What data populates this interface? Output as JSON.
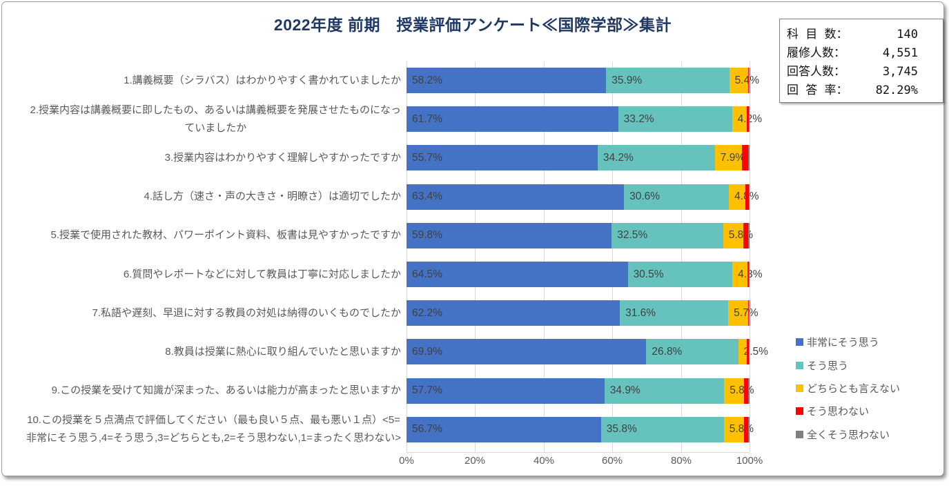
{
  "title": "2022年度 前期　授業評価アンケート≪国際学部≫集計",
  "title_color": "#1F3864",
  "stats_box": {
    "rows": [
      {
        "label": "科 目 数：",
        "value": "140"
      },
      {
        "label": "履修人数：",
        "value": "4,551"
      },
      {
        "label": "回答人数：",
        "value": "3,745"
      },
      {
        "label": "回 答 率：",
        "value": "82.29%"
      }
    ]
  },
  "chart_data": {
    "type": "bar",
    "stacked": true,
    "orientation": "horizontal",
    "xlim": [
      0,
      100
    ],
    "grid": true,
    "legend_position": "right",
    "x_ticks": [
      "0%",
      "20%",
      "40%",
      "60%",
      "80%",
      "100%"
    ],
    "categories": [
      {
        "lines": [
          "1.講義概要（シラバス）はわかりやすく書かれていましたか"
        ]
      },
      {
        "lines": [
          "2.授業内容は講義概要に即したもの、あるいは講義概要を発展させたものになっ",
          "ていましたか"
        ]
      },
      {
        "lines": [
          "3.授業内容はわかりやすく理解しやすかったですか"
        ]
      },
      {
        "lines": [
          "4.話し方（速さ・声の大きさ・明瞭さ）は適切でしたか"
        ]
      },
      {
        "lines": [
          "5.授業で使用された教材、パワーポイント資料、板書は見やすかったですか"
        ]
      },
      {
        "lines": [
          "6.質問やレポートなどに対して教員は丁寧に対応しましたか"
        ]
      },
      {
        "lines": [
          "7.私語や遅刻、早退に対する教員の対処は納得のいくものでしたか"
        ]
      },
      {
        "lines": [
          "8.教員は授業に熱心に取り組んでいたと思いますか"
        ]
      },
      {
        "lines": [
          "9.この授業を受けて知識が深まった、あるいは能力が高まったと思いますか"
        ]
      },
      {
        "lines": [
          "10.この授業を５点満点で評価してください（最も良い５点、最も悪い１点）<5=",
          "非常にそう思う,4=そう思う,3=どちらとも,2=そう思わない,1=まったく思わない>"
        ]
      }
    ],
    "series": [
      {
        "name": "非常にそう思う",
        "color": "#4472C4",
        "show_labels": true,
        "values": [
          58.2,
          61.7,
          55.7,
          63.4,
          59.8,
          64.5,
          62.2,
          69.9,
          57.7,
          56.7
        ]
      },
      {
        "name": "そう思う",
        "color": "#66C2BD",
        "show_labels": true,
        "values": [
          35.9,
          33.2,
          34.2,
          30.6,
          32.5,
          30.5,
          31.6,
          26.8,
          34.9,
          35.8
        ]
      },
      {
        "name": "どちらとも言えない",
        "color": "#FFC000",
        "show_labels": true,
        "values": [
          5.4,
          4.2,
          7.9,
          4.8,
          5.8,
          4.3,
          5.7,
          2.5,
          5.8,
          5.8
        ]
      },
      {
        "name": "そう思わない",
        "color": "#FF0000",
        "show_labels": false,
        "values": [
          0.4,
          0.7,
          1.7,
          1.0,
          1.4,
          0.5,
          0.4,
          0.6,
          1.2,
          1.3
        ]
      },
      {
        "name": "全くそう思わない",
        "color": "#808080",
        "show_labels": false,
        "values": [
          0.1,
          0.2,
          0.5,
          0.2,
          0.5,
          0.2,
          0.1,
          0.2,
          0.4,
          0.4
        ]
      }
    ],
    "grid_color": "#D9D9D9",
    "data_label_color": "#404040",
    "axis_text_color": "#595959"
  }
}
